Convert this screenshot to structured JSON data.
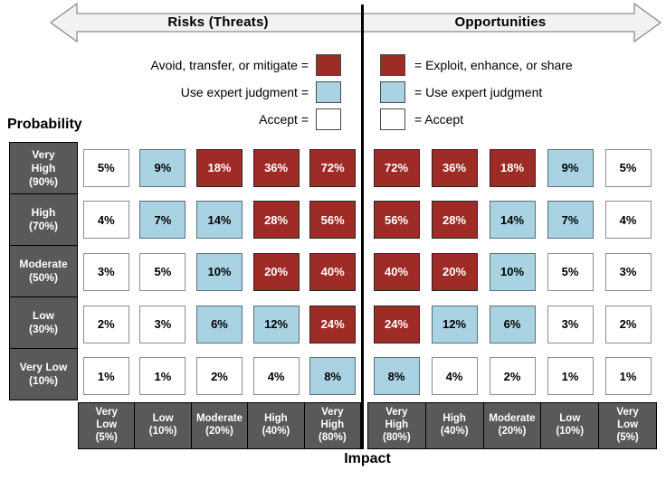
{
  "banner": {
    "left_label": "Risks (Threats)",
    "right_label": "Opportunities"
  },
  "axis_titles": {
    "probability": "Probability",
    "impact": "Impact"
  },
  "colors": {
    "red": "#9E2B25",
    "blue": "#A9D3E2",
    "white": "#FFFFFF",
    "header_gray": "#595959",
    "arrow_fill": "#F2F2F2",
    "arrow_border": "#8C8C8C",
    "divider": "#000000"
  },
  "legend_left": {
    "items": [
      {
        "label": "Avoid, transfer, or mitigate =",
        "color": "red"
      },
      {
        "label": "Use expert judgment =",
        "color": "blue"
      },
      {
        "label": "Accept =",
        "color": "white"
      }
    ]
  },
  "legend_right": {
    "items": [
      {
        "label": "= Exploit, enhance, or share",
        "color": "red"
      },
      {
        "label": "= Use expert judgment",
        "color": "blue"
      },
      {
        "label": "= Accept",
        "color": "white"
      }
    ]
  },
  "probability_rows": [
    "Very\nHigh\n(90%)",
    "High\n(70%)",
    "Moderate\n(50%)",
    "Low\n(30%)",
    "Very Low\n(10%)"
  ],
  "impact_cols_left": [
    "Very\nLow\n(5%)",
    "Low\n(10%)",
    "Moderate\n(20%)",
    "High\n(40%)",
    "Very\nHigh\n(80%)"
  ],
  "impact_cols_right": [
    "Very\nHigh\n(80%)",
    "High\n(40%)",
    "Moderate\n(20%)",
    "Low\n(10%)",
    "Very\nLow\n(5%)"
  ],
  "matrix_left": {
    "values": [
      [
        "5%",
        "9%",
        "18%",
        "36%",
        "72%"
      ],
      [
        "4%",
        "7%",
        "14%",
        "28%",
        "56%"
      ],
      [
        "3%",
        "5%",
        "10%",
        "20%",
        "40%"
      ],
      [
        "2%",
        "3%",
        "6%",
        "12%",
        "24%"
      ],
      [
        "1%",
        "1%",
        "2%",
        "4%",
        "8%"
      ]
    ],
    "colors": [
      [
        "white",
        "blue",
        "red",
        "red",
        "red"
      ],
      [
        "white",
        "blue",
        "blue",
        "red",
        "red"
      ],
      [
        "white",
        "white",
        "blue",
        "red",
        "red"
      ],
      [
        "white",
        "white",
        "blue",
        "blue",
        "red"
      ],
      [
        "white",
        "white",
        "white",
        "white",
        "blue"
      ]
    ]
  },
  "matrix_right": {
    "values": [
      [
        "72%",
        "36%",
        "18%",
        "9%",
        "5%"
      ],
      [
        "56%",
        "28%",
        "14%",
        "7%",
        "4%"
      ],
      [
        "40%",
        "20%",
        "10%",
        "5%",
        "3%"
      ],
      [
        "24%",
        "12%",
        "6%",
        "3%",
        "2%"
      ],
      [
        "8%",
        "4%",
        "2%",
        "1%",
        "1%"
      ]
    ],
    "colors": [
      [
        "red",
        "red",
        "red",
        "blue",
        "white"
      ],
      [
        "red",
        "red",
        "blue",
        "blue",
        "white"
      ],
      [
        "red",
        "red",
        "blue",
        "white",
        "white"
      ],
      [
        "red",
        "blue",
        "blue",
        "white",
        "white"
      ],
      [
        "blue",
        "white",
        "white",
        "white",
        "white"
      ]
    ]
  }
}
